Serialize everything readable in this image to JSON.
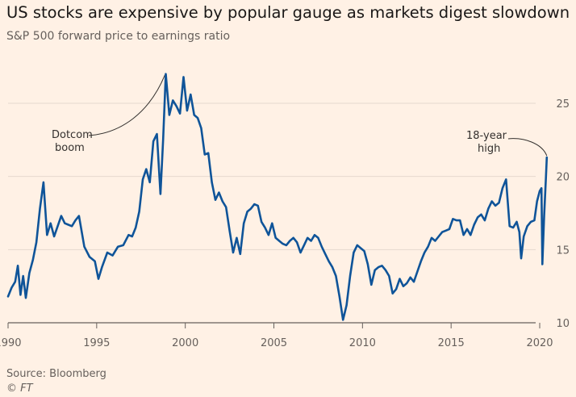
{
  "chart_data": {
    "type": "line",
    "title": "US stocks are expensive by popular gauge as markets digest slowdown",
    "subtitle": "S&P 500 forward price to earnings ratio",
    "xlim": [
      1990,
      2020.5
    ],
    "ylim": [
      10,
      27
    ],
    "x_ticks": [
      1990,
      1995,
      2000,
      2005,
      2010,
      2015,
      2020
    ],
    "y_ticks": [
      10,
      15,
      20,
      25
    ],
    "y_axis_position": "right",
    "grid": "horizontal",
    "line_color": "#0f5499",
    "annotations": [
      {
        "id": "dotcom",
        "lines": [
          "Dotcom",
          "boom"
        ],
        "x": 1998.9,
        "y": 27.0
      },
      {
        "id": "high",
        "lines": [
          "18-year",
          "high"
        ],
        "x": 2020.4,
        "y": 21.3
      }
    ],
    "series": [
      {
        "points": [
          [
            1990.0,
            11.8
          ],
          [
            1990.2,
            12.4
          ],
          [
            1990.4,
            12.8
          ],
          [
            1990.55,
            13.9
          ],
          [
            1990.7,
            11.9
          ],
          [
            1990.85,
            13.2
          ],
          [
            1991.0,
            11.7
          ],
          [
            1991.2,
            13.4
          ],
          [
            1991.4,
            14.3
          ],
          [
            1991.6,
            15.5
          ],
          [
            1991.8,
            17.8
          ],
          [
            1992.0,
            19.6
          ],
          [
            1992.2,
            16.0
          ],
          [
            1992.4,
            16.8
          ],
          [
            1992.6,
            15.9
          ],
          [
            1992.8,
            16.6
          ],
          [
            1993.0,
            17.3
          ],
          [
            1993.2,
            16.8
          ],
          [
            1993.4,
            16.7
          ],
          [
            1993.6,
            16.6
          ],
          [
            1993.8,
            17.0
          ],
          [
            1994.0,
            17.3
          ],
          [
            1994.3,
            15.2
          ],
          [
            1994.6,
            14.5
          ],
          [
            1994.9,
            14.2
          ],
          [
            1995.1,
            13.0
          ],
          [
            1995.3,
            13.8
          ],
          [
            1995.6,
            14.8
          ],
          [
            1995.9,
            14.6
          ],
          [
            1996.2,
            15.2
          ],
          [
            1996.5,
            15.3
          ],
          [
            1996.8,
            16.0
          ],
          [
            1997.0,
            15.9
          ],
          [
            1997.2,
            16.5
          ],
          [
            1997.4,
            17.6
          ],
          [
            1997.6,
            19.8
          ],
          [
            1997.8,
            20.5
          ],
          [
            1998.0,
            19.6
          ],
          [
            1998.2,
            22.4
          ],
          [
            1998.4,
            22.9
          ],
          [
            1998.6,
            18.8
          ],
          [
            1998.75,
            22.5
          ],
          [
            1998.9,
            27.0
          ],
          [
            1999.1,
            24.2
          ],
          [
            1999.3,
            25.2
          ],
          [
            1999.5,
            24.8
          ],
          [
            1999.7,
            24.3
          ],
          [
            1999.9,
            26.8
          ],
          [
            2000.1,
            24.5
          ],
          [
            2000.3,
            25.6
          ],
          [
            2000.5,
            24.2
          ],
          [
            2000.7,
            24.0
          ],
          [
            2000.9,
            23.3
          ],
          [
            2001.1,
            21.5
          ],
          [
            2001.3,
            21.6
          ],
          [
            2001.5,
            19.6
          ],
          [
            2001.7,
            18.4
          ],
          [
            2001.9,
            18.9
          ],
          [
            2002.1,
            18.3
          ],
          [
            2002.3,
            17.9
          ],
          [
            2002.5,
            16.3
          ],
          [
            2002.7,
            14.8
          ],
          [
            2002.9,
            15.8
          ],
          [
            2003.1,
            14.7
          ],
          [
            2003.3,
            16.8
          ],
          [
            2003.5,
            17.6
          ],
          [
            2003.7,
            17.8
          ],
          [
            2003.9,
            18.1
          ],
          [
            2004.1,
            18.0
          ],
          [
            2004.3,
            16.9
          ],
          [
            2004.5,
            16.5
          ],
          [
            2004.7,
            16.0
          ],
          [
            2004.9,
            16.8
          ],
          [
            2005.1,
            15.8
          ],
          [
            2005.3,
            15.6
          ],
          [
            2005.5,
            15.4
          ],
          [
            2005.7,
            15.3
          ],
          [
            2005.9,
            15.6
          ],
          [
            2006.1,
            15.8
          ],
          [
            2006.3,
            15.5
          ],
          [
            2006.5,
            14.8
          ],
          [
            2006.7,
            15.3
          ],
          [
            2006.9,
            15.8
          ],
          [
            2007.1,
            15.6
          ],
          [
            2007.3,
            16.0
          ],
          [
            2007.5,
            15.8
          ],
          [
            2007.7,
            15.2
          ],
          [
            2007.9,
            14.7
          ],
          [
            2008.1,
            14.2
          ],
          [
            2008.3,
            13.8
          ],
          [
            2008.5,
            13.2
          ],
          [
            2008.7,
            11.8
          ],
          [
            2008.9,
            10.2
          ],
          [
            2009.1,
            11.2
          ],
          [
            2009.3,
            13.2
          ],
          [
            2009.5,
            14.8
          ],
          [
            2009.7,
            15.3
          ],
          [
            2009.9,
            15.1
          ],
          [
            2010.1,
            14.9
          ],
          [
            2010.3,
            14.0
          ],
          [
            2010.5,
            12.6
          ],
          [
            2010.7,
            13.6
          ],
          [
            2010.9,
            13.8
          ],
          [
            2011.1,
            13.9
          ],
          [
            2011.3,
            13.6
          ],
          [
            2011.5,
            13.2
          ],
          [
            2011.7,
            12.0
          ],
          [
            2011.9,
            12.3
          ],
          [
            2012.1,
            13.0
          ],
          [
            2012.3,
            12.5
          ],
          [
            2012.5,
            12.7
          ],
          [
            2012.7,
            13.1
          ],
          [
            2012.9,
            12.8
          ],
          [
            2013.1,
            13.5
          ],
          [
            2013.3,
            14.2
          ],
          [
            2013.5,
            14.8
          ],
          [
            2013.7,
            15.2
          ],
          [
            2013.9,
            15.8
          ],
          [
            2014.1,
            15.6
          ],
          [
            2014.3,
            15.9
          ],
          [
            2014.5,
            16.2
          ],
          [
            2014.7,
            16.3
          ],
          [
            2014.9,
            16.4
          ],
          [
            2015.1,
            17.1
          ],
          [
            2015.3,
            17.0
          ],
          [
            2015.5,
            17.0
          ],
          [
            2015.7,
            16.0
          ],
          [
            2015.9,
            16.4
          ],
          [
            2016.1,
            16.0
          ],
          [
            2016.3,
            16.7
          ],
          [
            2016.5,
            17.2
          ],
          [
            2016.7,
            17.4
          ],
          [
            2016.9,
            17.0
          ],
          [
            2017.1,
            17.8
          ],
          [
            2017.3,
            18.3
          ],
          [
            2017.5,
            18.0
          ],
          [
            2017.7,
            18.2
          ],
          [
            2017.9,
            19.2
          ],
          [
            2018.1,
            19.8
          ],
          [
            2018.3,
            16.6
          ],
          [
            2018.5,
            16.5
          ],
          [
            2018.7,
            16.9
          ],
          [
            2018.85,
            16.2
          ],
          [
            2018.95,
            14.4
          ],
          [
            2019.1,
            15.9
          ],
          [
            2019.3,
            16.6
          ],
          [
            2019.5,
            16.9
          ],
          [
            2019.7,
            17.0
          ],
          [
            2019.85,
            18.3
          ],
          [
            2020.0,
            19.0
          ],
          [
            2020.1,
            19.2
          ],
          [
            2020.15,
            14.0
          ],
          [
            2020.25,
            17.3
          ],
          [
            2020.35,
            19.9
          ],
          [
            2020.4,
            21.3
          ]
        ]
      }
    ]
  },
  "footer": {
    "source": "Source: Bloomberg",
    "credit": "© FT"
  }
}
